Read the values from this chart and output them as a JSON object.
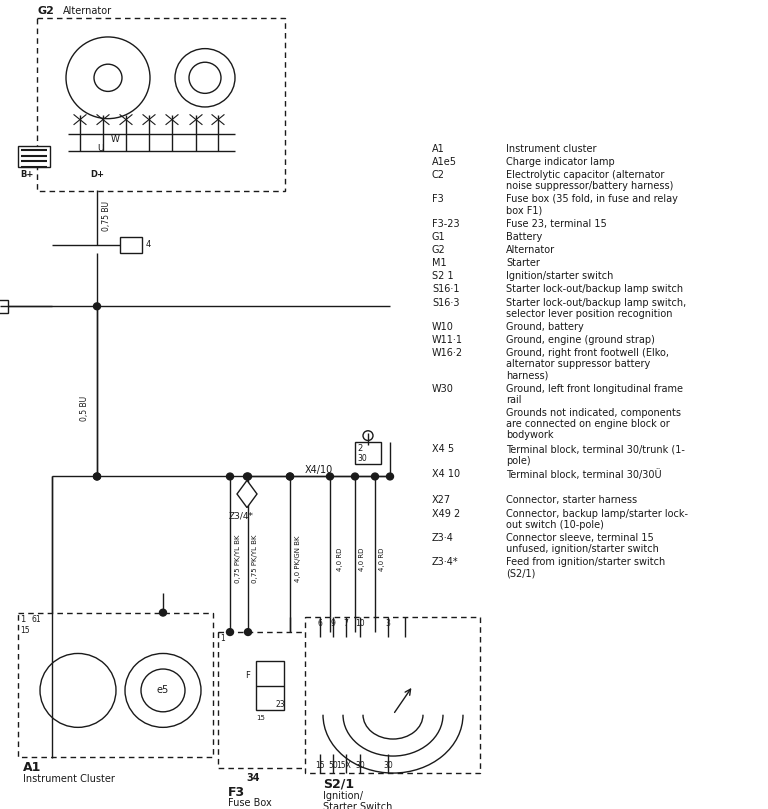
{
  "bg_color": "#ffffff",
  "line_color": "#1a1a1a",
  "legend_items": [
    [
      "A1",
      "Instrument cluster"
    ],
    [
      "A1e5",
      "Charge indicator lamp"
    ],
    [
      "C2",
      "Electrolytic capacitor (alternator\nnoise suppressor/battery harness)"
    ],
    [
      "F3",
      "Fuse box (35 fold, in fuse and relay\nbox F1)"
    ],
    [
      "F3-23",
      "Fuse 23, terminal 15"
    ],
    [
      "G1",
      "Battery"
    ],
    [
      "G2",
      "Alternator"
    ],
    [
      "M1",
      "Starter"
    ],
    [
      "S2 1",
      "Ignition/starter switch"
    ],
    [
      "S16·1",
      "Starter lock-out/backup lamp switch"
    ],
    [
      "S16·3",
      "Starter lock-out/backup lamp switch,\nselector lever position recognition"
    ],
    [
      "W10",
      "Ground, battery"
    ],
    [
      "W11·1",
      "Ground, engine (ground strap)"
    ],
    [
      "W16·2",
      "Ground, right front footwell (Elko,\nalternator suppressor battery\nharness)"
    ],
    [
      "W30",
      "Ground, left front longitudinal frame\nrail"
    ],
    [
      "",
      "Grounds not indicated, components\nare connected on engine block or\nbodywork"
    ],
    [
      "X4 5",
      "Terminal block, terminal 30/trunk (1-\npole)"
    ],
    [
      "X4 10",
      "Terminal block, terminal 30/30Ü"
    ],
    [
      "",
      ""
    ],
    [
      "X27",
      "Connector, starter harness"
    ],
    [
      "X49 2",
      "Connector, backup lamp/starter lock-\nout switch (10-pole)"
    ],
    [
      "Z3·4",
      "Connector sleeve, terminal 15\nunfused, ignition/starter switch"
    ],
    [
      "Z3·4*",
      "Feed from ignition/starter switch\n(S2/1)"
    ]
  ]
}
